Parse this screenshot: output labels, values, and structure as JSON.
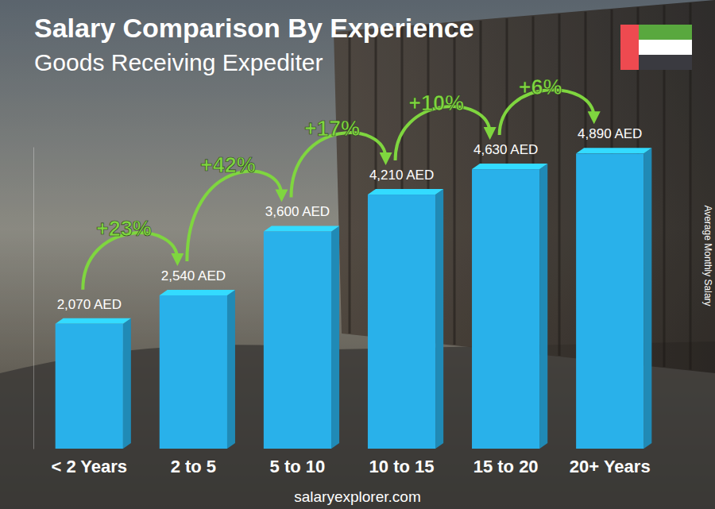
{
  "chart_data": {
    "type": "bar",
    "title": "Salary Comparison By Experience",
    "subtitle": "Goods Receiving Expediter",
    "y_label": "Average Monthly Salary",
    "source": "salaryexplorer.com",
    "categories": [
      "< 2 Years",
      "2 to 5",
      "5 to 10",
      "10 to 15",
      "15 to 20",
      "20+ Years"
    ],
    "values": [
      2070,
      2540,
      3600,
      4210,
      4630,
      4890
    ],
    "value_labels": [
      "2,070 AED",
      "2,540 AED",
      "3,600 AED",
      "4,210 AED",
      "4,630 AED",
      "4,890 AED"
    ],
    "annotations": [
      "+23%",
      "+42%",
      "+17%",
      "+10%",
      "+6%"
    ],
    "color": "#29b1ea",
    "ylim": [
      0,
      5000
    ],
    "yticks": [],
    "grid": false,
    "data_labels": true,
    "tick_labels": "x"
  }
}
